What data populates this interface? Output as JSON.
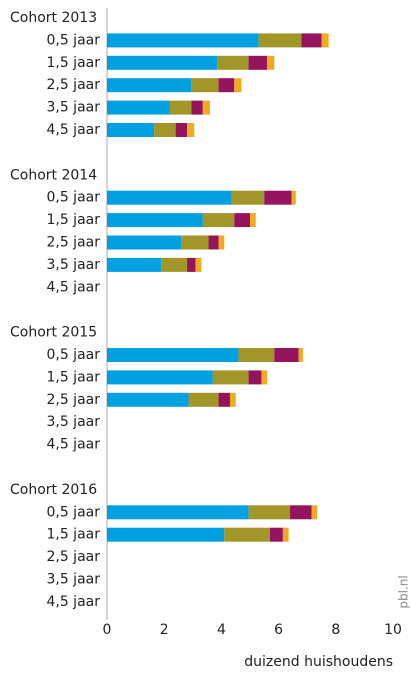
{
  "chart_data": {
    "type": "stacked-barh",
    "xlabel": "duizend huishoudens",
    "source": "pbl.nl",
    "xlim": [
      0,
      10
    ],
    "xticks": [
      0,
      2,
      4,
      6,
      8,
      10
    ],
    "groups": [
      {
        "label": "Cohort 2013",
        "categories": [
          "0,5 jaar",
          "1,5 jaar",
          "2,5 jaar",
          "3,5 jaar",
          "4,5 jaar"
        ]
      },
      {
        "label": "Cohort 2014",
        "categories": [
          "0,5 jaar",
          "1,5 jaar",
          "2,5 jaar",
          "3,5 jaar",
          "4,5 jaar"
        ]
      },
      {
        "label": "Cohort 2015",
        "categories": [
          "0,5 jaar",
          "1,5 jaar",
          "2,5 jaar",
          "3,5 jaar",
          "4,5 jaar"
        ]
      },
      {
        "label": "Cohort 2016",
        "categories": [
          "0,5 jaar",
          "1,5 jaar",
          "2,5 jaar",
          "3,5 jaar",
          "4,5 jaar"
        ]
      }
    ],
    "series": [
      {
        "color": "#00a0e1",
        "values": [
          [
            5.3,
            3.85,
            2.95,
            2.2,
            1.65
          ],
          [
            4.35,
            3.35,
            2.6,
            1.9,
            null
          ],
          [
            4.6,
            3.7,
            2.85,
            null,
            null
          ],
          [
            4.95,
            4.1,
            null,
            null,
            null
          ]
        ]
      },
      {
        "color": "#a29629",
        "values": [
          [
            1.5,
            1.1,
            0.95,
            0.75,
            0.75
          ],
          [
            1.15,
            1.1,
            0.95,
            0.9,
            null
          ],
          [
            1.25,
            1.25,
            1.05,
            null,
            null
          ],
          [
            1.45,
            1.6,
            null,
            null,
            null
          ]
        ]
      },
      {
        "color": "#94145e",
        "values": [
          [
            0.7,
            0.65,
            0.55,
            0.4,
            0.4
          ],
          [
            0.95,
            0.55,
            0.35,
            0.3,
            null
          ],
          [
            0.85,
            0.45,
            0.4,
            null,
            null
          ],
          [
            0.75,
            0.45,
            null,
            null,
            null
          ]
        ]
      },
      {
        "color": "#f0aa1e",
        "values": [
          [
            0.25,
            0.25,
            0.25,
            0.25,
            0.25
          ],
          [
            0.15,
            0.2,
            0.2,
            0.2,
            null
          ],
          [
            0.15,
            0.2,
            0.2,
            null,
            null
          ],
          [
            0.2,
            0.2,
            null,
            null,
            null
          ]
        ]
      }
    ]
  }
}
